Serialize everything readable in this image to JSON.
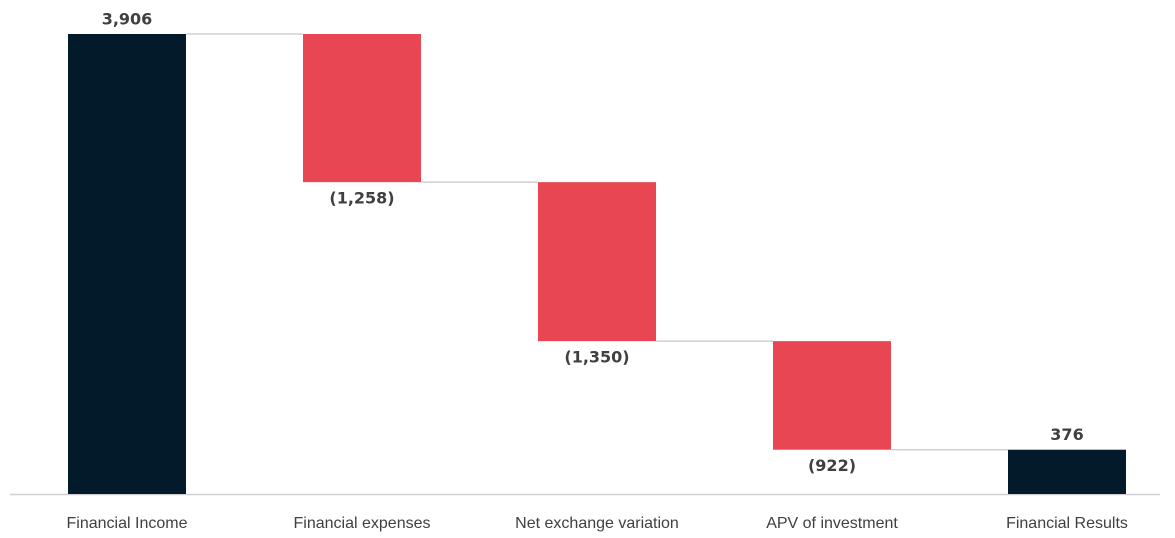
{
  "chart_data": {
    "type": "waterfall",
    "categories": [
      "Financial Income",
      "Financial expenses",
      "Net exchange variation",
      "APV of investment",
      "Financial Results"
    ],
    "values": [
      3906,
      -1258,
      -1350,
      -922,
      376
    ],
    "value_labels": [
      "3,906",
      "(1,258)",
      "(1,350)",
      "(922)",
      "376"
    ],
    "totals": [
      true,
      false,
      false,
      false,
      true
    ],
    "colors": [
      "#031a2b",
      "#e84652",
      "#e84652",
      "#e84652",
      "#031a2b"
    ]
  }
}
